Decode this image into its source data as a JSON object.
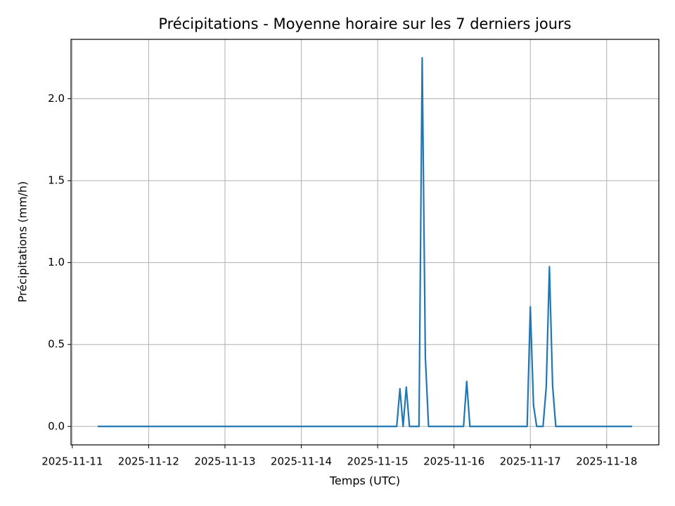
{
  "chart_data": {
    "type": "line",
    "title": "Précipitations - Moyenne horaire sur les 7 derniers jours",
    "xlabel": "Temps (UTC)",
    "ylabel": "Précipitations (mm/h)",
    "x": [
      "2025-11-11T08:00",
      "2025-11-15T06:00",
      "2025-11-15T07:00",
      "2025-11-15T08:00",
      "2025-11-15T09:00",
      "2025-11-15T10:00",
      "2025-11-15T13:00",
      "2025-11-15T14:00",
      "2025-11-15T15:00",
      "2025-11-15T16:00",
      "2025-11-16T03:00",
      "2025-11-16T04:00",
      "2025-11-16T05:00",
      "2025-11-16T23:00",
      "2025-11-17T00:00",
      "2025-11-17T01:00",
      "2025-11-17T02:00",
      "2025-11-17T04:00",
      "2025-11-17T05:00",
      "2025-11-17T06:00",
      "2025-11-17T07:00",
      "2025-11-17T08:00",
      "2025-11-18T08:00"
    ],
    "series": [
      {
        "color": "#1f77b4",
        "values": [
          0,
          0,
          0.23,
          0,
          0.24,
          0,
          0,
          2.25,
          0.42,
          0,
          0,
          0.275,
          0,
          0,
          0.73,
          0.13,
          0,
          0,
          0.24,
          0.975,
          0.25,
          0,
          0
        ]
      }
    ],
    "xlim": [
      "2025-11-10T23:36",
      "2025-11-18T16:24"
    ],
    "xticks": [
      "2025-11-11",
      "2025-11-12",
      "2025-11-13",
      "2025-11-14",
      "2025-11-15",
      "2025-11-16",
      "2025-11-17",
      "2025-11-18"
    ],
    "ylim": [
      -0.1125,
      2.3625
    ],
    "yticks": [
      {
        "value": 0,
        "label": "0.0"
      },
      {
        "value": 0.5,
        "label": "0.5"
      },
      {
        "value": 1,
        "label": "1.0"
      },
      {
        "value": 1.5,
        "label": "1.5"
      },
      {
        "value": 2,
        "label": "2.0"
      }
    ],
    "grid": true
  }
}
